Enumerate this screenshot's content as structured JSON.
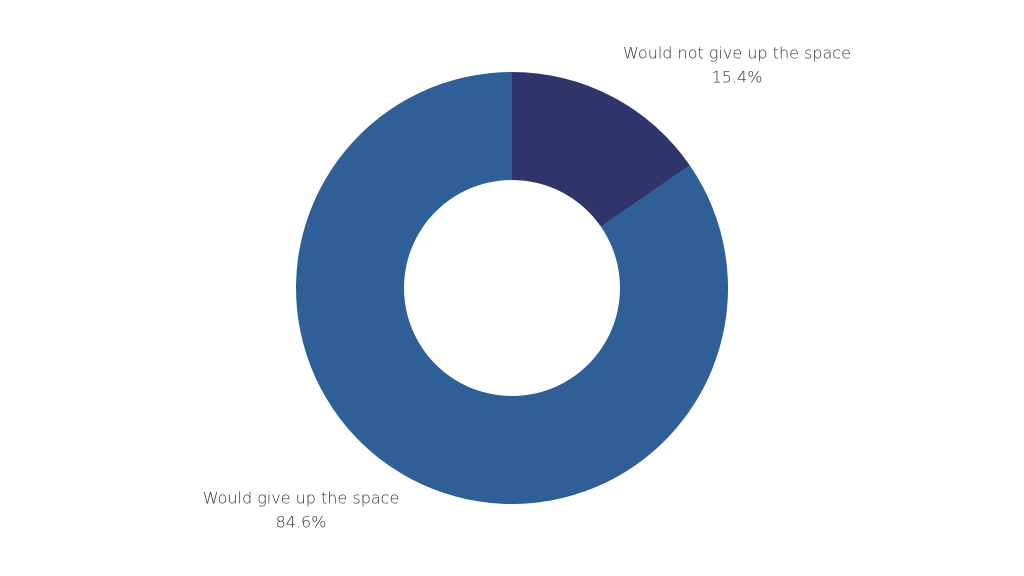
{
  "chart_data": {
    "type": "donut",
    "categories": [
      "Would not give up the space",
      "Would give up the space"
    ],
    "values": [
      15.4,
      84.6
    ],
    "value_labels": [
      "15.4%",
      "84.6%"
    ],
    "colors": [
      "#2f346b",
      "#2e5f97"
    ]
  }
}
